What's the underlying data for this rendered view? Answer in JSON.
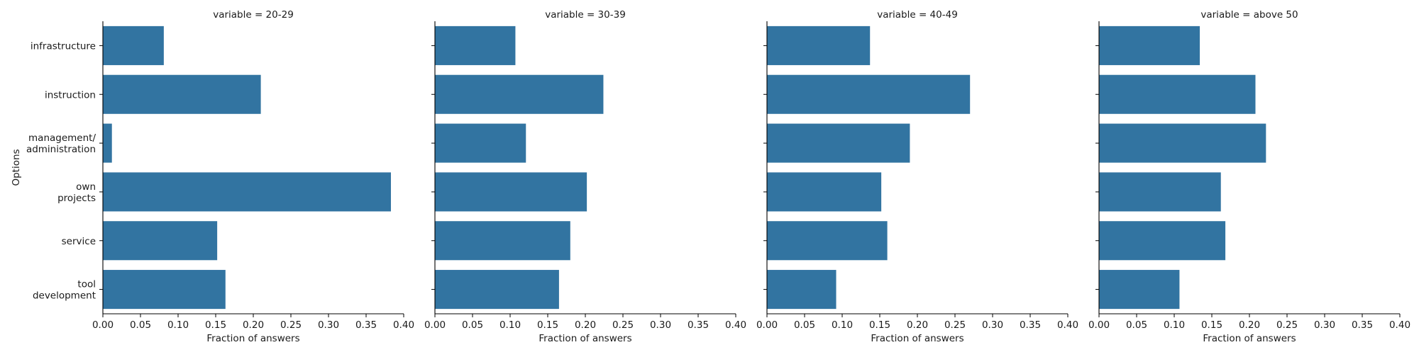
{
  "chart_data": {
    "type": "bar",
    "orientation": "horizontal",
    "ylabel": "Options",
    "xlabel": "Fraction of answers",
    "xlim": [
      0,
      0.4
    ],
    "xticks": [
      "0.00",
      "0.05",
      "0.10",
      "0.15",
      "0.20",
      "0.25",
      "0.30",
      "0.35",
      "0.40"
    ],
    "categories": [
      [
        "infrastructure"
      ],
      [
        "instruction"
      ],
      [
        "management/",
        "administration"
      ],
      [
        "own",
        "projects"
      ],
      [
        "service"
      ],
      [
        "tool",
        "development"
      ]
    ],
    "color": "#3274a1",
    "grid": false,
    "facets": [
      {
        "title": "variable = 20-29",
        "values": [
          0.081,
          0.21,
          0.012,
          0.383,
          0.152,
          0.163
        ]
      },
      {
        "title": "variable = 30-39",
        "values": [
          0.107,
          0.224,
          0.121,
          0.202,
          0.18,
          0.165
        ]
      },
      {
        "title": "variable = 40-49",
        "values": [
          0.137,
          0.27,
          0.19,
          0.152,
          0.16,
          0.092
        ]
      },
      {
        "title": "variable = above 50",
        "values": [
          0.134,
          0.208,
          0.222,
          0.162,
          0.168,
          0.107
        ]
      }
    ]
  }
}
